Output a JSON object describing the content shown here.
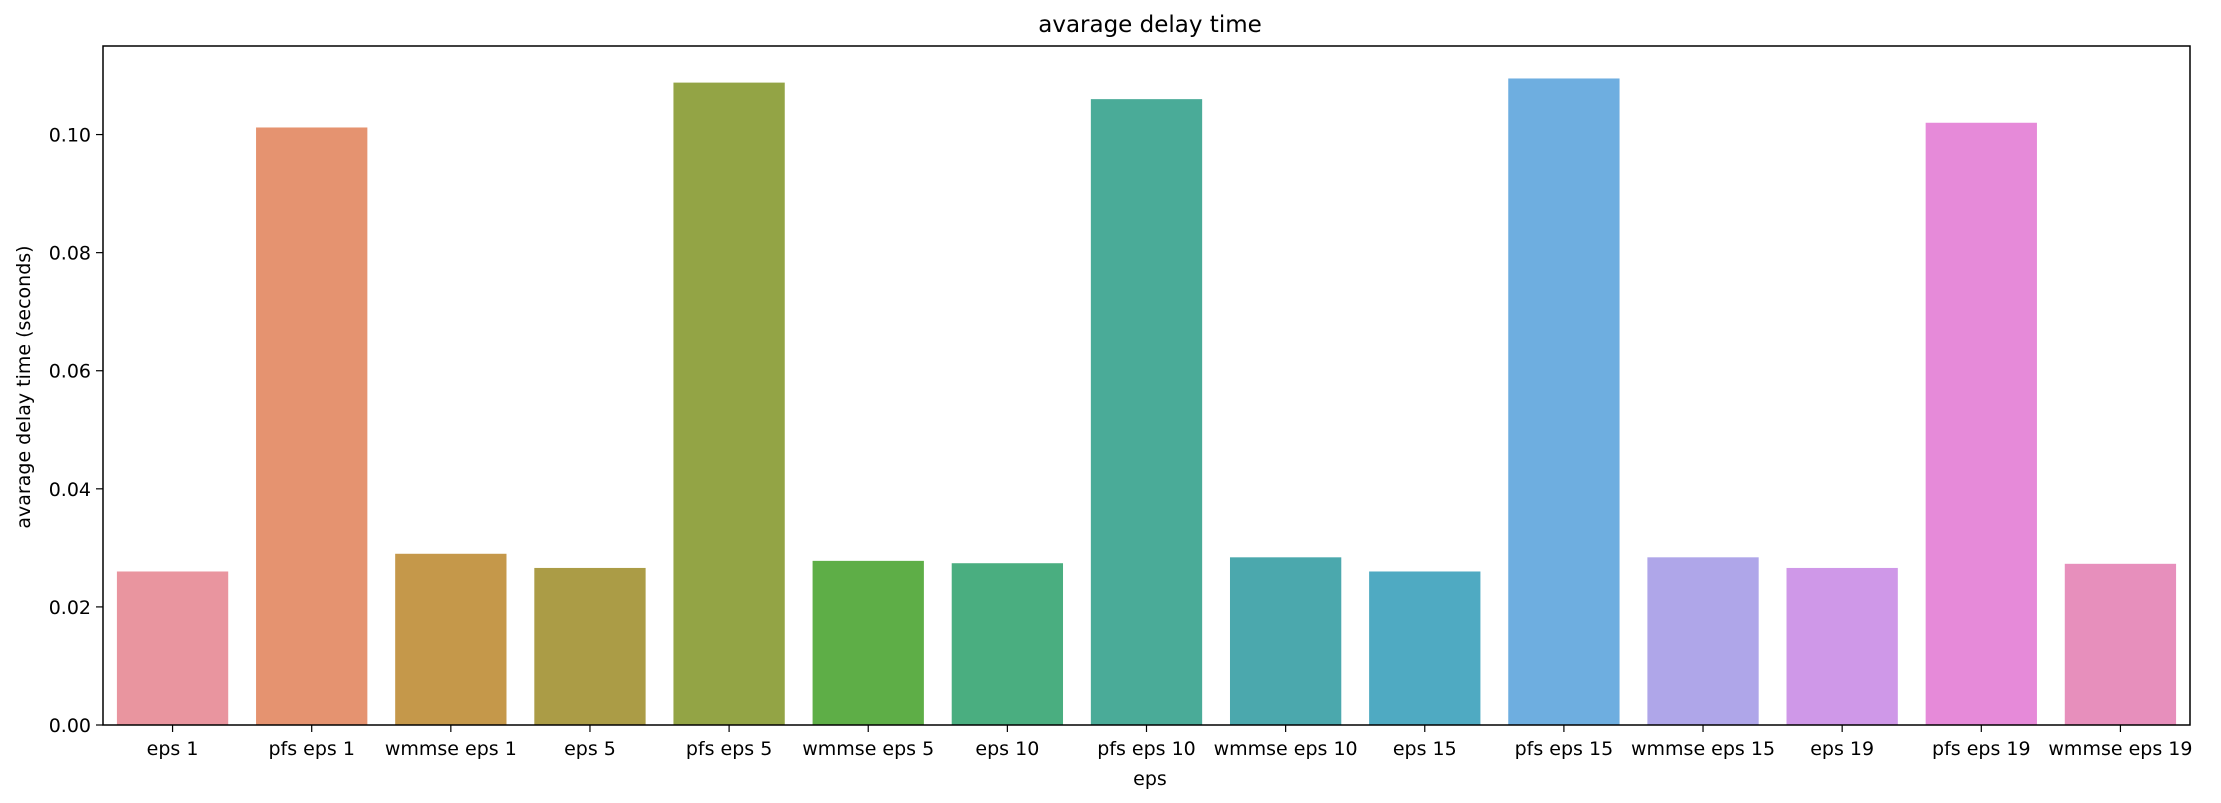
{
  "chart_data": {
    "type": "bar",
    "title": "avarage delay time",
    "xlabel": "eps",
    "ylabel": "avarage delay time (seconds)",
    "ylim": [
      0,
      0.115
    ],
    "yticks": [
      "0.00",
      "0.02",
      "0.04",
      "0.06",
      "0.08",
      "0.10"
    ],
    "grid": false,
    "categories": [
      "eps 1",
      "pfs eps 1",
      "wmmse eps 1",
      "eps 5",
      "pfs eps 5",
      "wmmse eps 5",
      "eps 10",
      "pfs eps 10",
      "wmmse eps 10",
      "eps 15",
      "pfs eps 15",
      "wmmse eps 15",
      "eps 19",
      "pfs eps 19",
      "wmmse eps 19"
    ],
    "values": [
      0.026,
      0.1012,
      0.029,
      0.0266,
      0.1088,
      0.0278,
      0.0274,
      0.106,
      0.0284,
      0.026,
      0.1095,
      0.0284,
      0.0266,
      0.102,
      0.0273
    ],
    "colors": [
      "#e9959f",
      "#e59370",
      "#c5984a",
      "#ab9c46",
      "#93a445",
      "#5eae47",
      "#4aae80",
      "#4aab98",
      "#4ba8ad",
      "#4faac2",
      "#6eaee0",
      "#afa6e9",
      "#cf98e8",
      "#e68ad9",
      "#e78fbc"
    ]
  }
}
